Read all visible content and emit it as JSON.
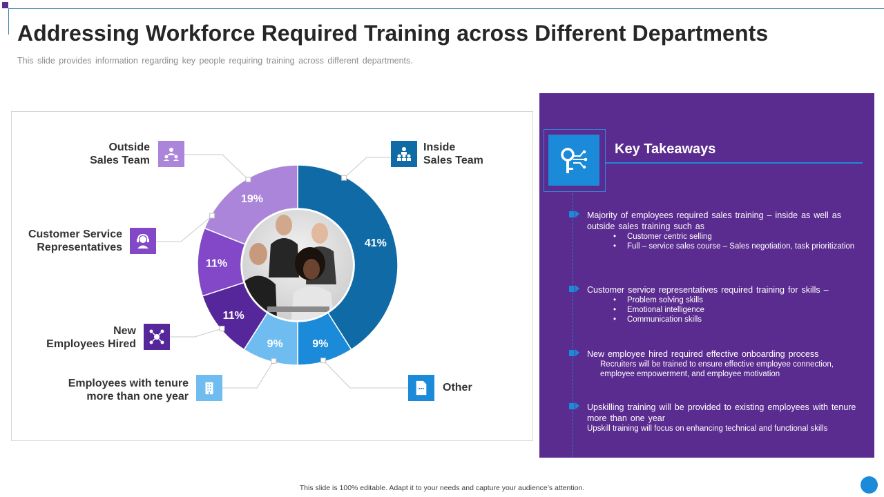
{
  "slide": {
    "title": "Addressing Workforce Required Training across Different Departments",
    "subtitle": "This slide provides information regarding key people requiring training across different departments.",
    "footer": "This slide is 100% editable. Adapt it to your needs and capture your audience’s attention."
  },
  "chart_data": {
    "type": "pie",
    "donut": true,
    "unit": "%",
    "categories": [
      "Inside\nSales Team",
      "Other",
      "Employees with tenure\nmore than one year",
      "New\nEmployees Hired",
      "Customer Service\nRepresentatives",
      "Outside\nSales Team"
    ],
    "values": [
      41,
      9,
      9,
      11,
      11,
      19
    ],
    "value_labels": [
      "41%",
      "9%",
      "9%",
      "11%",
      "11%",
      "19%"
    ],
    "colors": [
      "#0f6aa6",
      "#1b8ad8",
      "#6fbdf0",
      "#56279a",
      "#8248c8",
      "#ab85d9"
    ]
  },
  "chart_labels": {
    "inside_sales": "Inside\nSales Team",
    "other": "Other",
    "tenure": "Employees with tenure\nmore than one year",
    "new_hires": "New\nEmployees Hired",
    "customer_service": "Customer Service\nRepresentatives",
    "outside_sales": "Outside\nSales Team"
  },
  "icons": {
    "inside_sales": "team-org-icon",
    "other": "document-icon",
    "tenure": "building-icon",
    "new_hires": "network-people-icon",
    "customer_service": "headset-agent-icon",
    "outside_sales": "team-group-icon",
    "center": "team-photo",
    "key": "digital-key-icon"
  },
  "takeaways": {
    "title": "Key Takeaways",
    "items": [
      {
        "head": "Majority of employees required sales training – inside as well as outside sales training  such as",
        "bullets": [
          "Customer centric selling",
          "Full – service sales course – Sales negotiation, task prioritization"
        ]
      },
      {
        "head": "Customer service representatives  required  training for skills –",
        "bullets": [
          "Problem solving skills",
          "Emotional intelligence",
          "Communication skills"
        ]
      },
      {
        "head": "New employee hired required effective  onboarding  process",
        "sub": "Recruiters will be trained to ensure effective employee connection, employee empowerment, and employee motivation"
      },
      {
        "head": "Upskilling training will be provided  to existing employees with tenure more than one year",
        "sub": "Upskill training will focus on enhancing technical and functional skills"
      }
    ]
  }
}
